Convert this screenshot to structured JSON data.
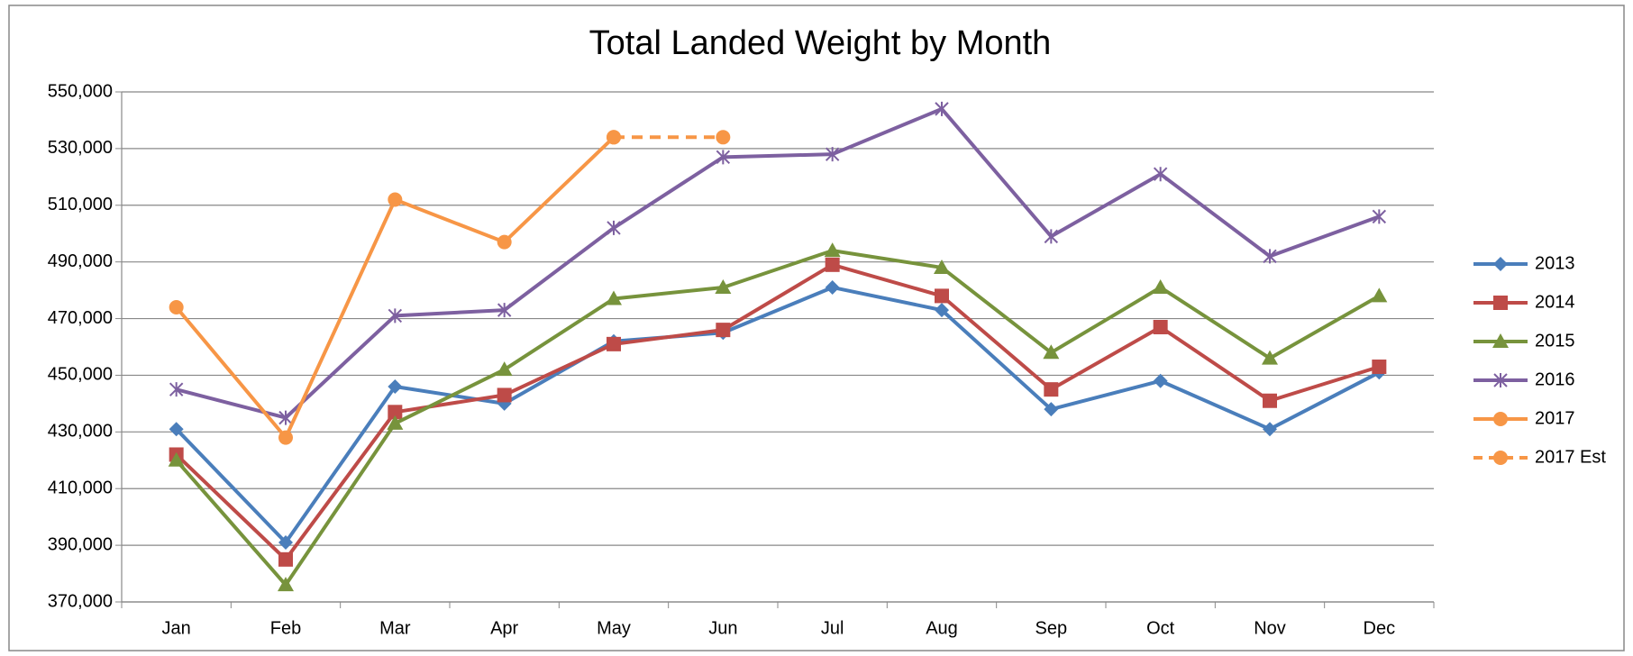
{
  "chart_data": {
    "type": "line",
    "title": "Total Landed Weight by Month",
    "categories": [
      "Jan",
      "Feb",
      "Mar",
      "Apr",
      "May",
      "Jun",
      "Jul",
      "Aug",
      "Sep",
      "Oct",
      "Nov",
      "Dec"
    ],
    "series": [
      {
        "name": "2013",
        "color": "#4a7ebb",
        "marker": "diamond",
        "dashed": false,
        "values": [
          431000,
          391000,
          446000,
          440000,
          462000,
          465000,
          481000,
          473000,
          438000,
          448000,
          431000,
          451000
        ]
      },
      {
        "name": "2014",
        "color": "#be4b48",
        "marker": "square",
        "dashed": false,
        "values": [
          422000,
          385000,
          437000,
          443000,
          461000,
          466000,
          489000,
          478000,
          445000,
          467000,
          441000,
          453000
        ]
      },
      {
        "name": "2015",
        "color": "#77933c",
        "marker": "triangle",
        "dashed": false,
        "values": [
          420000,
          376000,
          433000,
          452000,
          477000,
          481000,
          494000,
          488000,
          458000,
          481000,
          456000,
          478000
        ]
      },
      {
        "name": "2016",
        "color": "#7d60a0",
        "marker": "star",
        "dashed": false,
        "values": [
          445000,
          435000,
          471000,
          473000,
          502000,
          527000,
          528000,
          544000,
          499000,
          521000,
          492000,
          506000
        ]
      },
      {
        "name": "2017",
        "color": "#f79646",
        "marker": "circle",
        "dashed": false,
        "values": [
          474000,
          428000,
          512000,
          497000,
          534000,
          null,
          null,
          null,
          null,
          null,
          null,
          null
        ]
      },
      {
        "name": "2017 Est",
        "color": "#f79646",
        "marker": "circle",
        "dashed": true,
        "values": [
          null,
          null,
          null,
          null,
          534000,
          534000,
          null,
          null,
          null,
          null,
          null,
          null
        ]
      }
    ],
    "ylim": [
      370000,
      550000
    ],
    "yticks": [
      {
        "value": 370000,
        "label": "370,000"
      },
      {
        "value": 390000,
        "label": "390,000"
      },
      {
        "value": 410000,
        "label": "410,000"
      },
      {
        "value": 430000,
        "label": "430,000"
      },
      {
        "value": 450000,
        "label": "450,000"
      },
      {
        "value": 470000,
        "label": "470,000"
      },
      {
        "value": 490000,
        "label": "490,000"
      },
      {
        "value": 510000,
        "label": "510,000"
      },
      {
        "value": 530000,
        "label": "530,000"
      },
      {
        "value": 550000,
        "label": "550,000"
      }
    ],
    "grid": true,
    "legend": "right"
  }
}
